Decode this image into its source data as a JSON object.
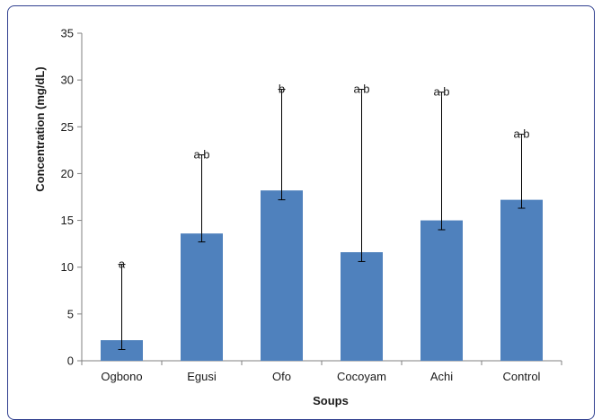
{
  "chart_data": {
    "type": "bar",
    "categories": [
      "Ogbono",
      "Egusi",
      "Ofo",
      "Cocoyam",
      "Achi",
      "Control"
    ],
    "values": [
      2.2,
      13.6,
      18.2,
      11.6,
      15.0,
      17.2
    ],
    "error_upper": [
      10.3,
      22.0,
      29.0,
      29.0,
      28.7,
      24.2
    ],
    "error_lower": [
      1.2,
      12.7,
      17.2,
      10.6,
      14.0,
      16.3
    ],
    "significance_labels": [
      "a",
      "a,b",
      "b",
      "a,b",
      "a,b",
      "a,b"
    ],
    "xlabel": "Soups",
    "ylabel": "Concentration (mg/dL)",
    "ylim": [
      0,
      35
    ],
    "yticks": [
      0,
      5,
      10,
      15,
      20,
      25,
      30,
      35
    ],
    "bar_color": "#4f81bd",
    "grid": false
  }
}
